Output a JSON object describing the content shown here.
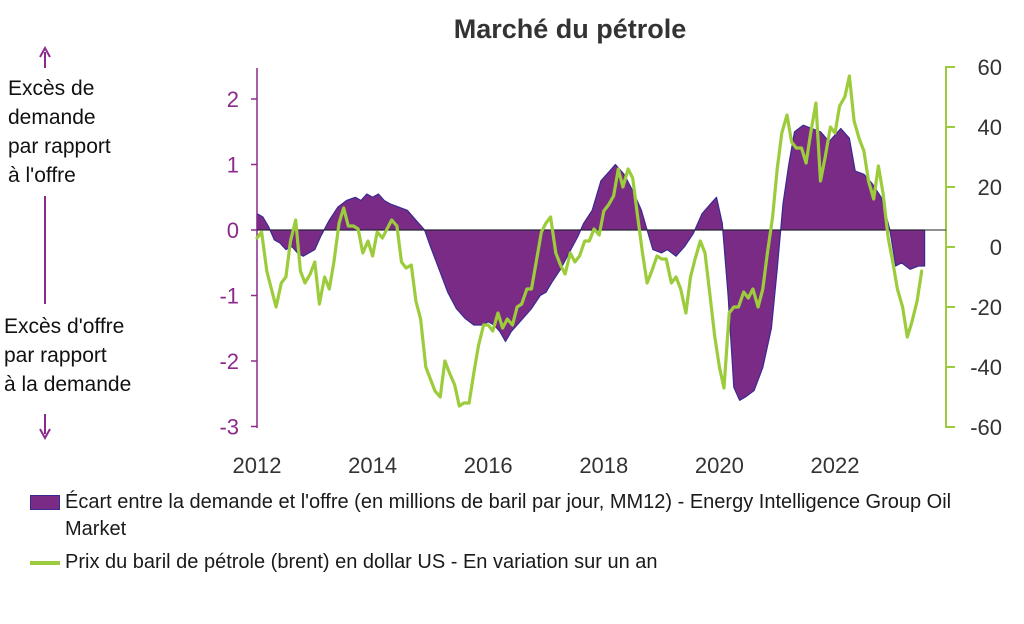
{
  "chart_data": {
    "type": "area",
    "title": "Marché du pétrole",
    "annotations": {
      "top": [
        "Excès de",
        "demande",
        "par rapport",
        "à l'offre"
      ],
      "bottom": [
        "Excès d'offre",
        "par rapport",
        "à la demande"
      ]
    },
    "x_ticks": [
      "2012",
      "2014",
      "2016",
      "2018",
      "2020",
      "2022"
    ],
    "xlim": [
      2012.0,
      2023.75
    ],
    "left_axis": {
      "ylim": [
        -3,
        2.5
      ],
      "ticks": [
        "-3",
        "-2",
        "-1",
        "0",
        "1",
        "2"
      ],
      "color": "#8b2a8c"
    },
    "right_axis": {
      "ylim": [
        -60,
        60
      ],
      "ticks": [
        "-60",
        "-40",
        "-20",
        "0",
        "20",
        "40",
        "60"
      ],
      "color": "#9ccc3c"
    },
    "colors": {
      "area_fill": "#7a2b86",
      "area_edge": "#3a2a90",
      "line": "#9ccc3c",
      "axis_left": "#8b2a8c",
      "axis_right": "#9ccc3c"
    },
    "series": [
      {
        "name": "Écart entre la demande et l'offre (en millions de baril par jour, MM12) - Energy Intelligence Group Oil Market",
        "axis": "left",
        "style": "area",
        "points": [
          [
            2012.0,
            0.25
          ],
          [
            2012.1,
            0.2
          ],
          [
            2012.2,
            0.05
          ],
          [
            2012.3,
            -0.15
          ],
          [
            2012.4,
            -0.2
          ],
          [
            2012.5,
            -0.3
          ],
          [
            2012.6,
            -0.25
          ],
          [
            2012.7,
            -0.35
          ],
          [
            2012.8,
            -0.4
          ],
          [
            2012.9,
            -0.35
          ],
          [
            2013.0,
            -0.3
          ],
          [
            2013.1,
            -0.1
          ],
          [
            2013.25,
            0.15
          ],
          [
            2013.4,
            0.35
          ],
          [
            2013.55,
            0.45
          ],
          [
            2013.7,
            0.5
          ],
          [
            2013.8,
            0.45
          ],
          [
            2013.9,
            0.55
          ],
          [
            2014.0,
            0.5
          ],
          [
            2014.1,
            0.55
          ],
          [
            2014.2,
            0.45
          ],
          [
            2014.3,
            0.4
          ],
          [
            2014.45,
            0.35
          ],
          [
            2014.6,
            0.3
          ],
          [
            2014.75,
            0.15
          ],
          [
            2014.9,
            0.0
          ],
          [
            2015.0,
            -0.25
          ],
          [
            2015.15,
            -0.6
          ],
          [
            2015.3,
            -0.95
          ],
          [
            2015.45,
            -1.2
          ],
          [
            2015.6,
            -1.35
          ],
          [
            2015.75,
            -1.45
          ],
          [
            2015.9,
            -1.45
          ],
          [
            2016.0,
            -1.4
          ],
          [
            2016.1,
            -1.45
          ],
          [
            2016.2,
            -1.55
          ],
          [
            2016.3,
            -1.7
          ],
          [
            2016.4,
            -1.55
          ],
          [
            2016.5,
            -1.45
          ],
          [
            2016.6,
            -1.35
          ],
          [
            2016.75,
            -1.2
          ],
          [
            2016.9,
            -1.0
          ],
          [
            2017.0,
            -0.95
          ],
          [
            2017.1,
            -0.8
          ],
          [
            2017.25,
            -0.6
          ],
          [
            2017.4,
            -0.35
          ],
          [
            2017.55,
            -0.1
          ],
          [
            2017.65,
            0.1
          ],
          [
            2017.8,
            0.3
          ],
          [
            2017.95,
            0.75
          ],
          [
            2018.1,
            0.9
          ],
          [
            2018.2,
            1.0
          ],
          [
            2018.35,
            0.85
          ],
          [
            2018.5,
            0.6
          ],
          [
            2018.65,
            0.3
          ],
          [
            2018.75,
            0.0
          ],
          [
            2018.85,
            -0.3
          ],
          [
            2019.0,
            -0.35
          ],
          [
            2019.1,
            -0.3
          ],
          [
            2019.25,
            -0.4
          ],
          [
            2019.4,
            -0.25
          ],
          [
            2019.55,
            -0.05
          ],
          [
            2019.7,
            0.25
          ],
          [
            2019.85,
            0.4
          ],
          [
            2019.95,
            0.5
          ],
          [
            2020.05,
            0.1
          ],
          [
            2020.15,
            -1.0
          ],
          [
            2020.25,
            -2.4
          ],
          [
            2020.35,
            -2.6
          ],
          [
            2020.45,
            -2.55
          ],
          [
            2020.6,
            -2.45
          ],
          [
            2020.75,
            -2.1
          ],
          [
            2020.9,
            -1.5
          ],
          [
            2021.0,
            -0.6
          ],
          [
            2021.1,
            0.4
          ],
          [
            2021.2,
            1.0
          ],
          [
            2021.3,
            1.5
          ],
          [
            2021.45,
            1.6
          ],
          [
            2021.6,
            1.55
          ],
          [
            2021.75,
            1.5
          ],
          [
            2021.9,
            1.35
          ],
          [
            2022.0,
            1.45
          ],
          [
            2022.1,
            1.55
          ],
          [
            2022.25,
            1.4
          ],
          [
            2022.35,
            0.9
          ],
          [
            2022.5,
            0.85
          ],
          [
            2022.65,
            0.7
          ],
          [
            2022.8,
            0.5
          ],
          [
            2022.95,
            0.0
          ],
          [
            2023.05,
            -0.55
          ],
          [
            2023.15,
            -0.5
          ],
          [
            2023.3,
            -0.6
          ],
          [
            2023.45,
            -0.55
          ],
          [
            2023.55,
            -0.55
          ]
        ]
      },
      {
        "name": "Prix du baril de pétrole (brent) en dollar US - En variation sur un an",
        "axis": "right",
        "style": "line",
        "points": [
          [
            2012.0,
            3
          ],
          [
            2012.08,
            5
          ],
          [
            2012.17,
            -8
          ],
          [
            2012.25,
            -14
          ],
          [
            2012.33,
            -20
          ],
          [
            2012.42,
            -12
          ],
          [
            2012.5,
            -10
          ],
          [
            2012.58,
            2
          ],
          [
            2012.67,
            9
          ],
          [
            2012.75,
            -8
          ],
          [
            2012.83,
            -12
          ],
          [
            2012.92,
            -9
          ],
          [
            2013.0,
            -5
          ],
          [
            2013.08,
            -19
          ],
          [
            2013.17,
            -10
          ],
          [
            2013.25,
            -14
          ],
          [
            2013.33,
            -5
          ],
          [
            2013.42,
            8
          ],
          [
            2013.5,
            13
          ],
          [
            2013.58,
            7
          ],
          [
            2013.67,
            7
          ],
          [
            2013.75,
            6
          ],
          [
            2013.83,
            -2
          ],
          [
            2013.92,
            2
          ],
          [
            2014.0,
            -3
          ],
          [
            2014.08,
            5
          ],
          [
            2014.17,
            3
          ],
          [
            2014.25,
            6
          ],
          [
            2014.33,
            9
          ],
          [
            2014.42,
            7
          ],
          [
            2014.5,
            -5
          ],
          [
            2014.58,
            -7
          ],
          [
            2014.67,
            -6
          ],
          [
            2014.75,
            -18
          ],
          [
            2014.83,
            -24
          ],
          [
            2014.92,
            -40
          ],
          [
            2015.0,
            -44
          ],
          [
            2015.08,
            -48
          ],
          [
            2015.17,
            -50
          ],
          [
            2015.25,
            -38
          ],
          [
            2015.33,
            -42
          ],
          [
            2015.42,
            -46
          ],
          [
            2015.5,
            -53
          ],
          [
            2015.58,
            -52
          ],
          [
            2015.67,
            -52
          ],
          [
            2015.75,
            -42
          ],
          [
            2015.83,
            -33
          ],
          [
            2015.92,
            -26
          ],
          [
            2016.0,
            -26
          ],
          [
            2016.08,
            -28
          ],
          [
            2016.17,
            -22
          ],
          [
            2016.25,
            -27
          ],
          [
            2016.33,
            -24
          ],
          [
            2016.42,
            -26
          ],
          [
            2016.5,
            -20
          ],
          [
            2016.58,
            -19
          ],
          [
            2016.67,
            -14
          ],
          [
            2016.75,
            -14
          ],
          [
            2016.83,
            -5
          ],
          [
            2016.92,
            5
          ],
          [
            2017.0,
            8
          ],
          [
            2017.08,
            10
          ],
          [
            2017.17,
            -2
          ],
          [
            2017.25,
            -6
          ],
          [
            2017.33,
            -9
          ],
          [
            2017.42,
            -2
          ],
          [
            2017.5,
            -5
          ],
          [
            2017.58,
            -3
          ],
          [
            2017.67,
            2
          ],
          [
            2017.75,
            2
          ],
          [
            2017.83,
            6
          ],
          [
            2017.92,
            4
          ],
          [
            2018.0,
            12
          ],
          [
            2018.08,
            14
          ],
          [
            2018.17,
            17
          ],
          [
            2018.25,
            26
          ],
          [
            2018.33,
            20
          ],
          [
            2018.42,
            26
          ],
          [
            2018.5,
            23
          ],
          [
            2018.58,
            11
          ],
          [
            2018.67,
            -2
          ],
          [
            2018.75,
            -12
          ],
          [
            2018.83,
            -8
          ],
          [
            2018.92,
            -3
          ],
          [
            2019.0,
            -4
          ],
          [
            2019.08,
            -4
          ],
          [
            2019.17,
            -12
          ],
          [
            2019.25,
            -10
          ],
          [
            2019.33,
            -14
          ],
          [
            2019.42,
            -22
          ],
          [
            2019.5,
            -10
          ],
          [
            2019.58,
            -4
          ],
          [
            2019.67,
            2
          ],
          [
            2019.75,
            -2
          ],
          [
            2019.83,
            -15
          ],
          [
            2019.92,
            -30
          ],
          [
            2020.0,
            -40
          ],
          [
            2020.08,
            -47
          ],
          [
            2020.17,
            -22
          ],
          [
            2020.25,
            -20
          ],
          [
            2020.33,
            -20
          ],
          [
            2020.42,
            -15
          ],
          [
            2020.5,
            -17
          ],
          [
            2020.58,
            -14
          ],
          [
            2020.67,
            -20
          ],
          [
            2020.75,
            -14
          ],
          [
            2020.83,
            -2
          ],
          [
            2020.92,
            10
          ],
          [
            2021.0,
            26
          ],
          [
            2021.08,
            38
          ],
          [
            2021.17,
            44
          ],
          [
            2021.25,
            35
          ],
          [
            2021.33,
            33
          ],
          [
            2021.42,
            33
          ],
          [
            2021.5,
            28
          ],
          [
            2021.58,
            38
          ],
          [
            2021.67,
            48
          ],
          [
            2021.75,
            22
          ],
          [
            2021.83,
            30
          ],
          [
            2021.92,
            40
          ],
          [
            2022.0,
            38
          ],
          [
            2022.08,
            47
          ],
          [
            2022.17,
            50
          ],
          [
            2022.25,
            57
          ],
          [
            2022.33,
            42
          ],
          [
            2022.42,
            36
          ],
          [
            2022.5,
            32
          ],
          [
            2022.58,
            22
          ],
          [
            2022.67,
            16
          ],
          [
            2022.75,
            27
          ],
          [
            2022.83,
            18
          ],
          [
            2022.92,
            3
          ],
          [
            2023.0,
            -5
          ],
          [
            2023.08,
            -14
          ],
          [
            2023.17,
            -20
          ],
          [
            2023.25,
            -30
          ],
          [
            2023.33,
            -25
          ],
          [
            2023.42,
            -18
          ],
          [
            2023.5,
            -8
          ]
        ]
      }
    ],
    "legend_placement": "bottom",
    "grid": false
  }
}
